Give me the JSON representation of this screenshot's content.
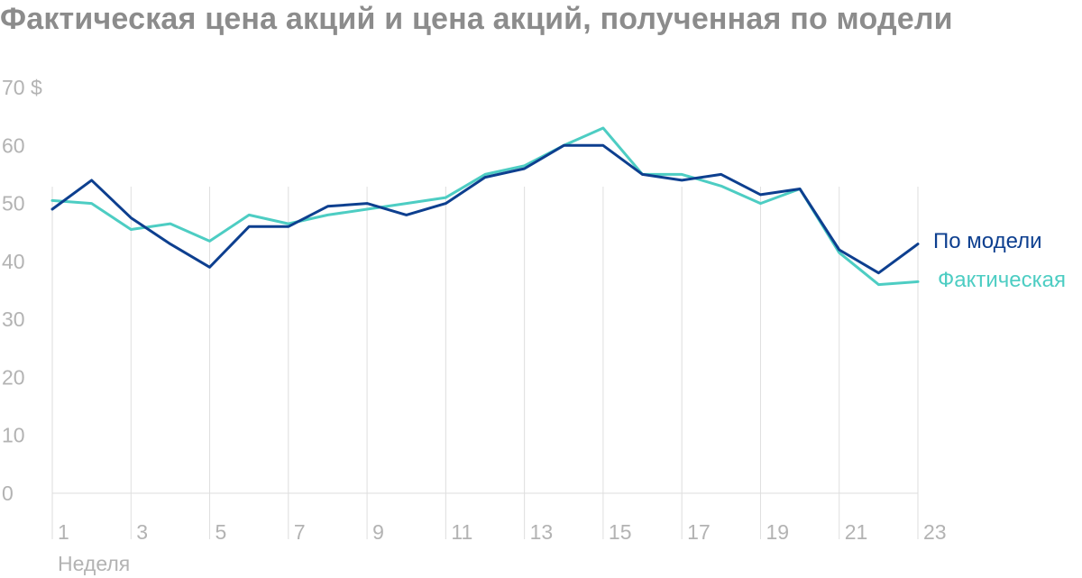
{
  "chart_data": {
    "type": "line",
    "title": "Фактическая цена акций и цена акций, полученная по модели",
    "xlabel": "Неделя",
    "ylabel": "",
    "y_unit": "$",
    "ylim": [
      0,
      70
    ],
    "y_ticks": [
      0,
      10,
      20,
      30,
      40,
      50,
      60,
      70
    ],
    "y_tick_labels": [
      "0",
      "10",
      "20",
      "30",
      "40",
      "50",
      "60",
      "70 $"
    ],
    "x": [
      1,
      2,
      3,
      4,
      5,
      6,
      7,
      8,
      9,
      10,
      11,
      12,
      13,
      14,
      15,
      16,
      17,
      18,
      19,
      20,
      21,
      22,
      23
    ],
    "x_ticks": [
      1,
      3,
      5,
      7,
      9,
      11,
      13,
      15,
      17,
      19,
      21,
      23
    ],
    "x_tick_labels": [
      "1",
      "3",
      "5",
      "7",
      "9",
      "11",
      "13",
      "15",
      "17",
      "19",
      "21",
      "23"
    ],
    "grid": "vertical",
    "legend": "inline-right",
    "series": [
      {
        "name": "По модели",
        "color": "#0d3f8f",
        "values": [
          49,
          54,
          47.5,
          43,
          39,
          46,
          46,
          49.5,
          50,
          48,
          50,
          54.5,
          56,
          60,
          60,
          55,
          54,
          55,
          51.5,
          52.5,
          42,
          38,
          43
        ]
      },
      {
        "name": "Фактическая",
        "color": "#4dcdc3",
        "values": [
          50.5,
          50,
          45.5,
          46.5,
          43.5,
          48,
          46.5,
          48,
          49,
          50,
          51,
          55,
          56.5,
          60,
          63,
          55,
          55,
          53,
          50,
          52.5,
          41.5,
          36,
          36.5
        ]
      }
    ]
  }
}
